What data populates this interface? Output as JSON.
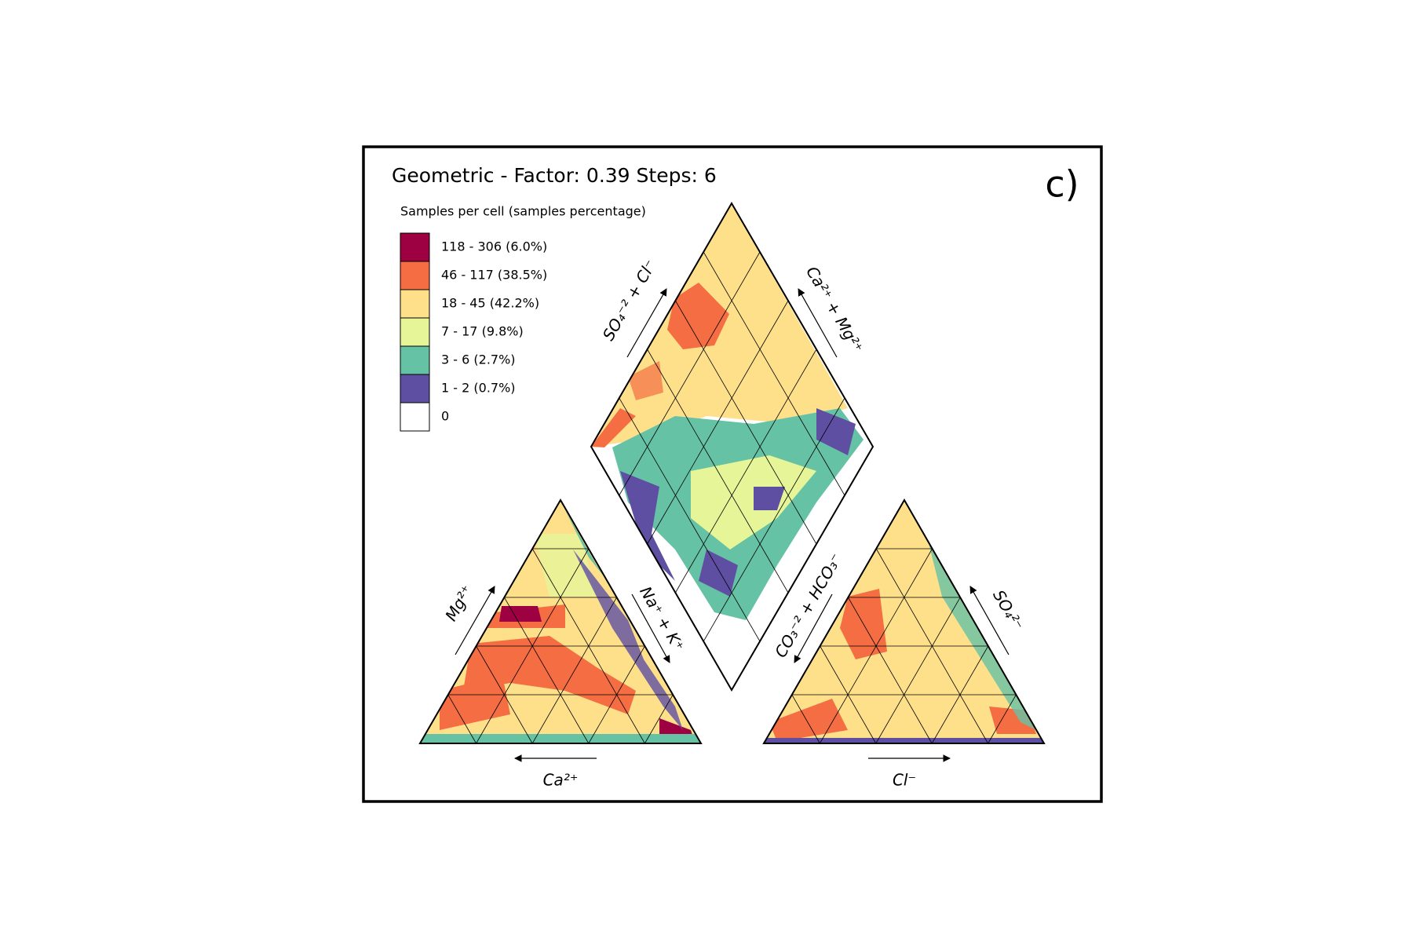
{
  "chart_data": {
    "type": "piper",
    "title": "Geometric - Factor: 0.39 Steps: 6",
    "panel_label": "c)",
    "legend": {
      "title": "Samples per cell (samples percentage)",
      "entries": [
        {
          "label": "118 - 306  (6.0%)",
          "color": "#9e0142"
        },
        {
          "label": "46 - 117  (38.5%)",
          "color": "#f46d43"
        },
        {
          "label": "18 - 45  (42.2%)",
          "color": "#fee08b"
        },
        {
          "label": "7 - 17  (9.8%)",
          "color": "#e6f598"
        },
        {
          "label": "3 - 6  (2.7%)",
          "color": "#66c2a5"
        },
        {
          "label": "1 - 2  (0.7%)",
          "color": "#5e4fa2"
        },
        {
          "label": "0",
          "color": "#ffffff"
        }
      ]
    },
    "axis_labels": {
      "cation_left": "Mg²⁺",
      "cation_right": "Na⁺ + K⁺",
      "cation_bottom": "Ca²⁺",
      "anion_left": "CO₃⁻² + HCO₃⁻",
      "anion_right": "SO₄²⁻",
      "anion_bottom": "Cl⁻",
      "diamond_left": "SO₄⁻² + Cl⁻",
      "diamond_right": "Ca²⁺ + Mg²⁺"
    }
  }
}
